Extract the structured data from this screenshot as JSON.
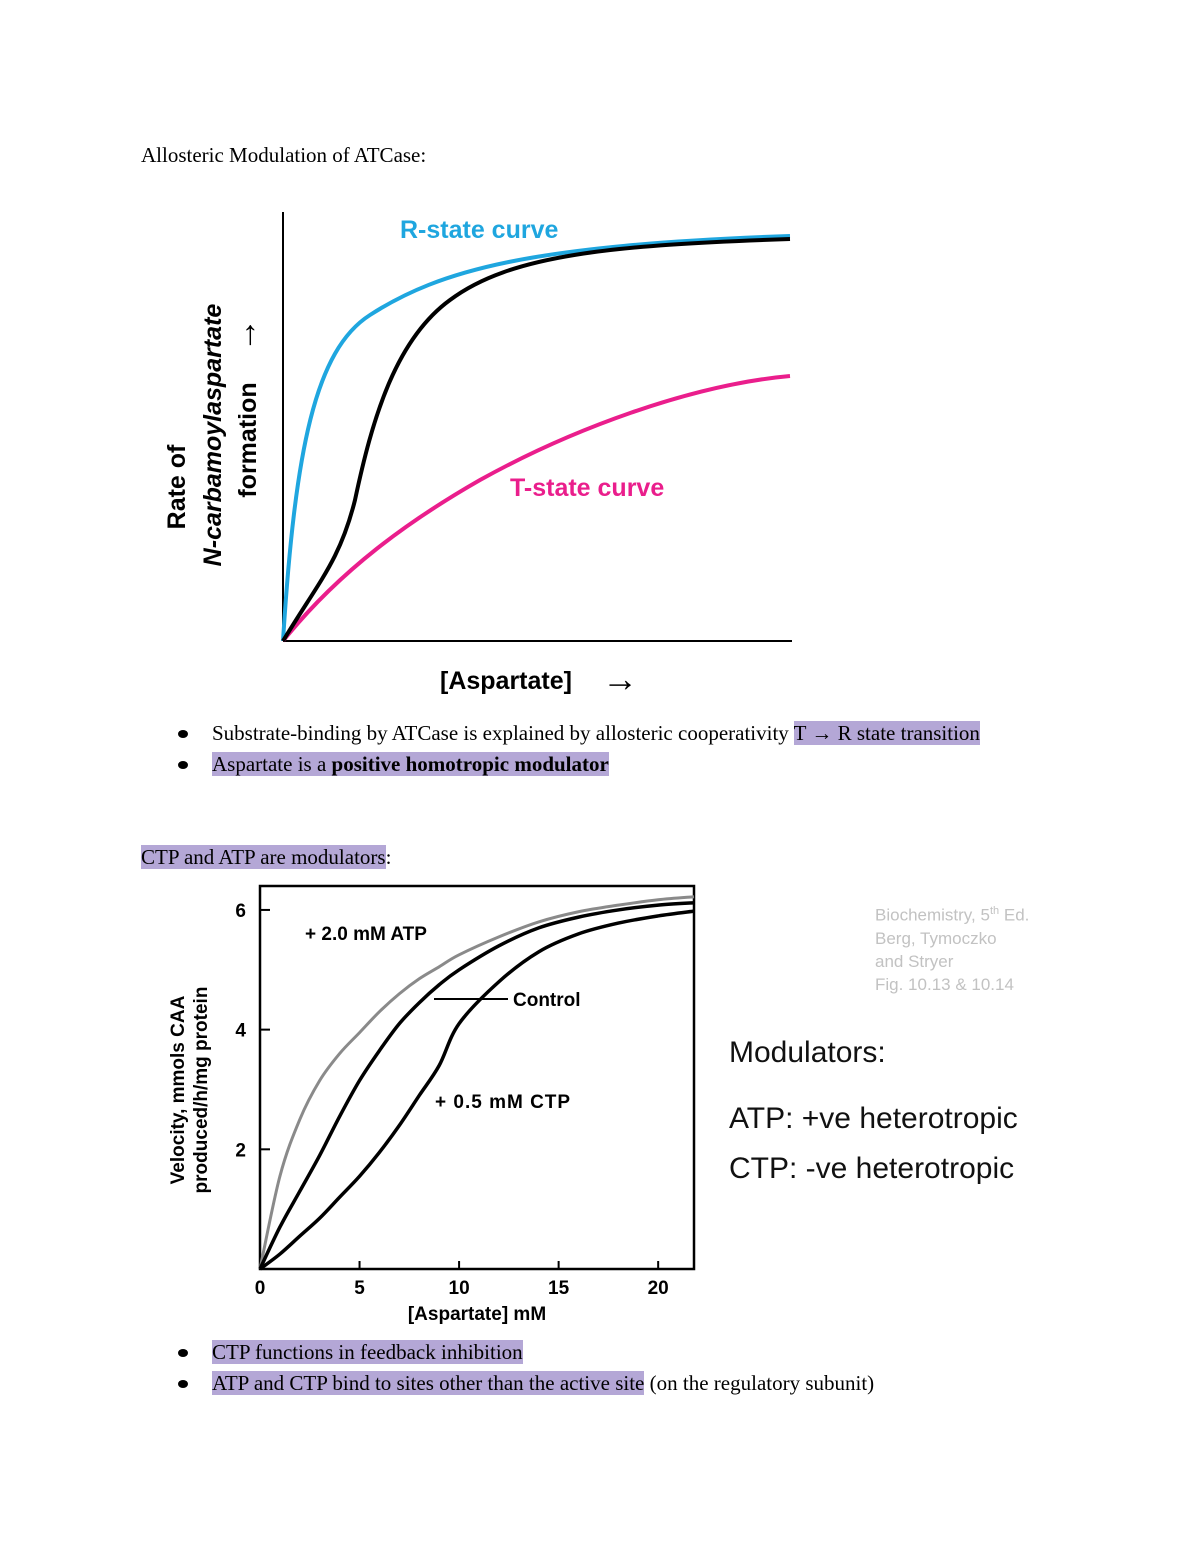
{
  "heading": "Allosteric Modulation of ATCase:",
  "chart1": {
    "r_label": "R-state curve",
    "t_label": "T-state curve",
    "y_label_line1": "Rate of",
    "y_label_line2": "N-carbamoylaspartate",
    "y_label_line3": "formation",
    "y_arrow": "→",
    "x_label": "[Aspartate]",
    "x_arrow": "→",
    "colors": {
      "r_state": "#1fa6df",
      "t_state": "#ea1e8c",
      "observed": "#000000"
    }
  },
  "list1": [
    {
      "pre": "Substrate-binding by ATCase is explained by allosteric cooperativity ",
      "hl": "T → R state transition"
    },
    {
      "hl_pre": "Aspartate is a ",
      "hl_bold": "positive homotropic modulator"
    }
  ],
  "subheading2": {
    "hl": "CTP and ATP are modulators",
    "rest": ":"
  },
  "chart_data": {
    "type": "line",
    "xlabel": "[Aspartate] mM",
    "ylabel_line1": "Velocity, mmols CAA",
    "ylabel_line2": "produced/h/mg protein",
    "xlim": [
      0,
      21.8
    ],
    "ylim": [
      0,
      6.4
    ],
    "xticks": [
      "0",
      "5",
      "10",
      "15",
      "20"
    ],
    "yticks": [
      "2",
      "4",
      "6"
    ],
    "series": [
      {
        "name": "+ 2.0 mM ATP",
        "color": "#8a8a8a",
        "x": [
          0,
          1,
          2,
          3,
          4,
          5,
          6,
          7,
          8,
          9,
          10,
          12,
          14,
          16,
          18,
          20,
          21.8
        ],
        "y": [
          0,
          1.55,
          2.5,
          3.15,
          3.6,
          3.95,
          4.3,
          4.6,
          4.85,
          5.05,
          5.25,
          5.55,
          5.8,
          5.97,
          6.08,
          6.17,
          6.22
        ]
      },
      {
        "name": "Control",
        "color": "#000000",
        "x": [
          0,
          1,
          2,
          3,
          4,
          5,
          6,
          7,
          8,
          9,
          10,
          12,
          14,
          16,
          18,
          20,
          21.8
        ],
        "y": [
          0,
          0.7,
          1.3,
          1.9,
          2.55,
          3.15,
          3.65,
          4.1,
          4.45,
          4.75,
          5.0,
          5.4,
          5.7,
          5.88,
          6.0,
          6.08,
          6.12
        ]
      },
      {
        "name": "+ 0.5 mM CTP",
        "color": "#000000",
        "x": [
          0,
          1,
          2,
          3,
          4,
          5,
          6,
          7,
          8,
          9,
          10,
          12,
          14,
          16,
          18,
          20,
          21.8
        ],
        "y": [
          0,
          0.25,
          0.55,
          0.85,
          1.2,
          1.55,
          1.95,
          2.4,
          2.9,
          3.4,
          4.1,
          4.8,
          5.3,
          5.6,
          5.78,
          5.9,
          5.98
        ]
      }
    ]
  },
  "credit": {
    "line1": "Biochemistry, 5",
    "sup": "th",
    "line1_end": " Ed.",
    "line2": "Berg, Tymoczko",
    "line3": "and Stryer",
    "line4": "Fig. 10.13 & 10.14"
  },
  "modulators": {
    "title": "Modulators:",
    "atp": "ATP: +ve heterotropic",
    "ctp": "CTP: -ve heterotropic"
  },
  "list2": [
    {
      "hl": "CTP functions in feedback inhibition",
      "rest": ""
    },
    {
      "hl": "ATP and CTP bind to sites other than the active site",
      "rest": " (on the regulatory subunit)"
    }
  ]
}
